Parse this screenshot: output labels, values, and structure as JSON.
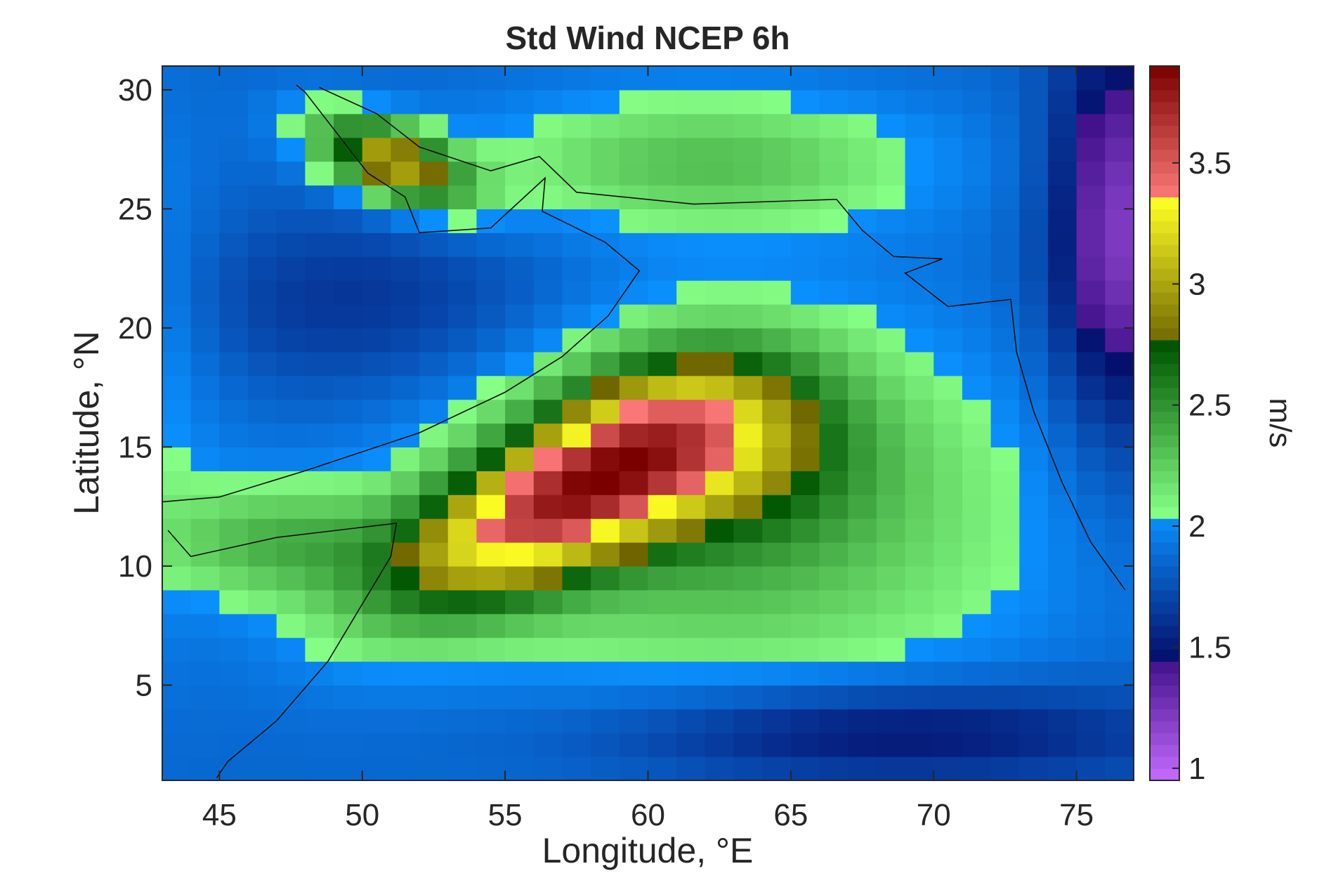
{
  "chart_data": {
    "type": "heatmap",
    "title": "Std Wind NCEP 6h",
    "xlabel": "Longitude, °E",
    "ylabel": "Latitude, °N",
    "xlim": [
      43,
      77
    ],
    "ylim": [
      1,
      31
    ],
    "xticks": [
      45,
      50,
      55,
      60,
      65,
      70,
      75
    ],
    "yticks": [
      5,
      10,
      15,
      20,
      25,
      30
    ],
    "colorbar": {
      "label": "m/s",
      "range": [
        0.95,
        3.9
      ],
      "ticks": [
        1,
        1.5,
        2,
        2.5,
        3,
        3.5
      ],
      "colors": [
        {
          "from": 0.95,
          "to": 1.45,
          "start": "#c46bff",
          "end": "#40108a"
        },
        {
          "from": 1.45,
          "to": 2.05,
          "start": "#050e6b",
          "end": "#0a91ff"
        },
        {
          "from": 2.05,
          "to": 2.75,
          "start": "#86ff86",
          "end": "#005500"
        },
        {
          "from": 2.75,
          "to": 3.35,
          "start": "#6e6500",
          "end": "#ffff25"
        },
        {
          "from": 3.35,
          "to": 3.9,
          "start": "#ff7b7b",
          "end": "#7a0000"
        }
      ]
    },
    "grid_cells_deg": 1,
    "feature_note_values": {
      "background": 1.85,
      "arabia_inland": 1.6,
      "persian_gulf": 3.0,
      "red_sea": 2.25,
      "arabian_sea": 2.35,
      "somali_jet_core": 3.8,
      "equatorial_indian_ocean": 1.9,
      "india_west_coast": 1.2
    }
  }
}
